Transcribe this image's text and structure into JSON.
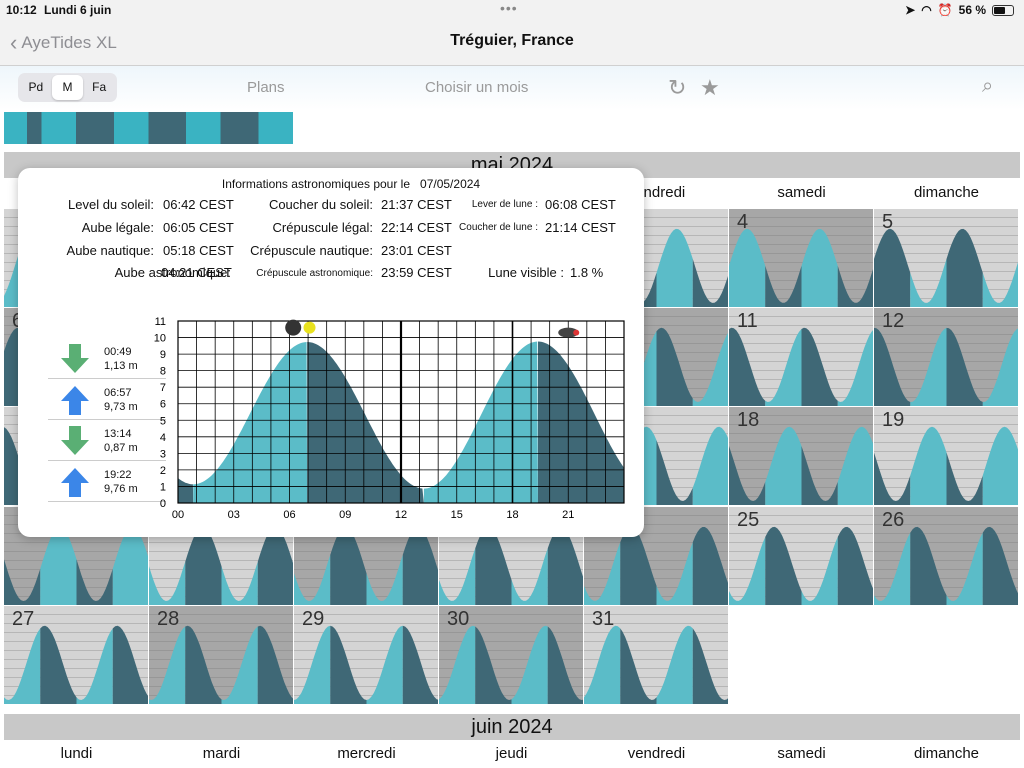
{
  "status": {
    "time": "10:12",
    "date": "Lundi 6 juin",
    "battery": "56 %"
  },
  "nav": {
    "back": "AyeTides XL",
    "title": "Tréguier, France"
  },
  "toolbar": {
    "seg": [
      "Pd",
      "M",
      "Fa"
    ],
    "plans": "Plans",
    "month_choice": "Choisir un mois",
    "icons": [
      "refresh-icon",
      "star-icon",
      "search-icon"
    ]
  },
  "calendar": {
    "may_label": "mai 2024",
    "june_label": "juin 2024",
    "weekdays": [
      "lundi",
      "mardi",
      "mercredi",
      "jeudi",
      "vendredi",
      "samedi",
      "dimanche"
    ],
    "may_visible_head": [
      "vendredi",
      "samedi",
      "dimanche"
    ],
    "day_numbers": {
      "w1": [
        "4",
        "5"
      ],
      "w2": [
        "6",
        "11",
        "12"
      ],
      "w3": [
        "18",
        "19"
      ],
      "w4": [
        "25",
        "26"
      ],
      "w5": [
        "27",
        "28",
        "29",
        "30",
        "31"
      ]
    }
  },
  "popup": {
    "header": "Informations astronomiques pour le",
    "date": "07/05/2024",
    "rows": [
      {
        "l1": "Level du soleil:",
        "v1": "06:42 CEST",
        "l2": "Coucher du soleil:",
        "v2": "21:37 CEST",
        "l3": "Lever de lune :",
        "v3": "06:08 CEST"
      },
      {
        "l1": "Aube légale:",
        "v1": "06:05 CEST",
        "l2": "Crépuscule légal:",
        "v2": "22:14 CEST",
        "l3": "Coucher de lune :",
        "v3": "21:14 CEST"
      },
      {
        "l1": "Aube nautique:",
        "v1": "05:18 CEST",
        "l2": "Crépuscule nautique:",
        "v2": "23:01 CEST"
      },
      {
        "l1": "Aube astronomique:",
        "v1": "04:21 CEST",
        "l2": "Crépuscule astronomique:",
        "v2": "23:59 CEST",
        "l3": "Lune visible :",
        "v3": "1.8 %"
      }
    ],
    "tides": [
      {
        "dir": "down",
        "time": "00:49",
        "height": "1,13 m"
      },
      {
        "dir": "up",
        "time": "06:57",
        "height": "9,73 m"
      },
      {
        "dir": "down",
        "time": "13:14",
        "height": "0,87 m"
      },
      {
        "dir": "up",
        "time": "19:22",
        "height": "9,76 m"
      }
    ],
    "colors": {
      "water_light": "#5bbcc8",
      "water_dark": "#3f6876",
      "arrow_down": "#5aaf74",
      "arrow_up": "#3b86e8"
    }
  },
  "chart_data": {
    "type": "area",
    "title": "",
    "xlabel": "",
    "ylabel": "",
    "x_ticks": [
      "00",
      "03",
      "06",
      "09",
      "12",
      "15",
      "18",
      "21"
    ],
    "y_ticks": [
      "0",
      "1",
      "2",
      "3",
      "4",
      "5",
      "6",
      "7",
      "8",
      "9",
      "10",
      "11"
    ],
    "ylim": [
      0,
      11
    ],
    "xlim": [
      0,
      24
    ],
    "series": [
      {
        "x": [
          0.82,
          6.95,
          13.23,
          19.37
        ],
        "values": [
          1.13,
          9.73,
          0.87,
          9.76
        ]
      }
    ]
  }
}
